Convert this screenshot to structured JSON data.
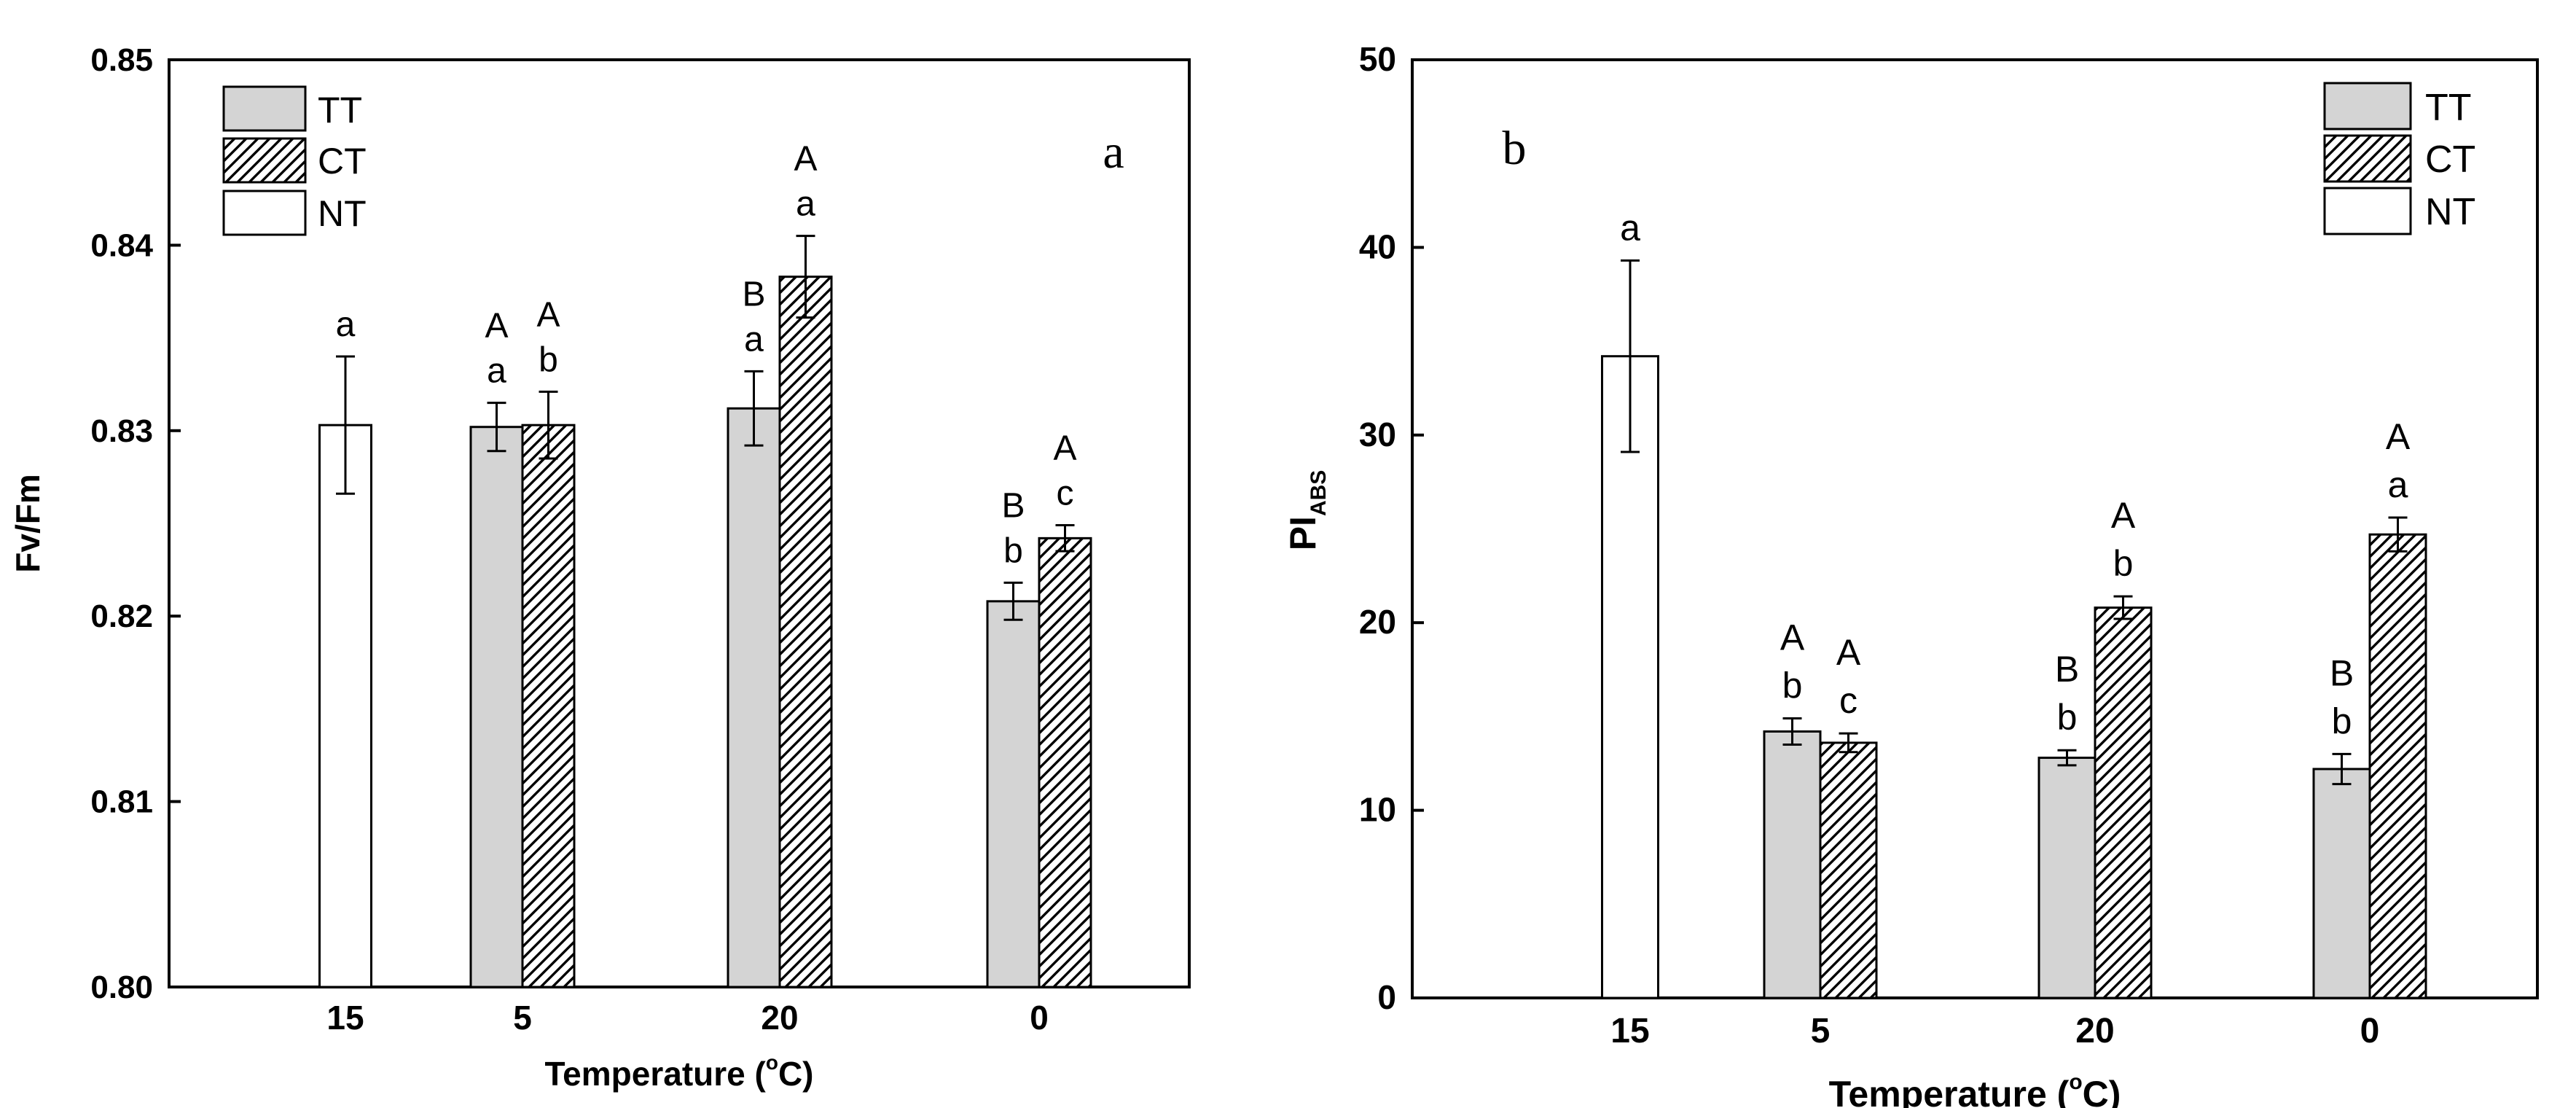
{
  "chart_data": [
    {
      "type": "bar",
      "panel_label": "a",
      "ylabel": "Fv/Fm",
      "xlabel_main": "Temperature (",
      "xlabel_deg": "o",
      "xlabel_unit": "C)",
      "ylim": [
        0.8,
        0.85
      ],
      "yticks": [
        0.8,
        0.81,
        0.82,
        0.83,
        0.84,
        0.85
      ],
      "ytick_labels": [
        "0.80",
        "0.81",
        "0.82",
        "0.83",
        "0.84",
        "0.85"
      ],
      "categories": [
        "15",
        "5",
        "20",
        "0"
      ],
      "legend": [
        {
          "label": "TT",
          "fill": "gray"
        },
        {
          "label": "CT",
          "fill": "hatch"
        },
        {
          "label": "NT",
          "fill": "white"
        }
      ],
      "bars": [
        {
          "category": 0,
          "series": "NT",
          "value": 0.8303,
          "err": 0.0037,
          "letters": [
            "a"
          ]
        },
        {
          "category": 1,
          "series": "TT",
          "value": 0.8302,
          "err": 0.0013,
          "letters": [
            "A",
            "a"
          ]
        },
        {
          "category": 1,
          "series": "CT",
          "value": 0.8303,
          "err": 0.0018,
          "letters": [
            "A",
            "b"
          ]
        },
        {
          "category": 2,
          "series": "TT",
          "value": 0.8312,
          "err": 0.002,
          "letters": [
            "B",
            "a"
          ]
        },
        {
          "category": 2,
          "series": "CT",
          "value": 0.8383,
          "err": 0.0022,
          "letters": [
            "A",
            "a"
          ]
        },
        {
          "category": 3,
          "series": "TT",
          "value": 0.8208,
          "err": 0.001,
          "letters": [
            "B",
            "b"
          ]
        },
        {
          "category": 3,
          "series": "CT",
          "value": 0.8242,
          "err": 0.0007,
          "letters": [
            "A",
            "c"
          ]
        }
      ]
    },
    {
      "type": "bar",
      "panel_label": "b",
      "ylabel_main": "PI",
      "ylabel_sub": "ABS",
      "xlabel_main": "Temperature (",
      "xlabel_deg": "o",
      "xlabel_unit": "C)",
      "ylim": [
        0,
        50
      ],
      "yticks": [
        0,
        10,
        20,
        30,
        40,
        50
      ],
      "ytick_labels": [
        "0",
        "10",
        "20",
        "30",
        "40",
        "50"
      ],
      "categories": [
        "15",
        "5",
        "20",
        "0"
      ],
      "legend": [
        {
          "label": "TT",
          "fill": "gray"
        },
        {
          "label": "CT",
          "fill": "hatch"
        },
        {
          "label": "NT",
          "fill": "white"
        }
      ],
      "bars": [
        {
          "category": 0,
          "series": "NT",
          "value": 34.2,
          "err": 5.1,
          "letters": [
            "a"
          ]
        },
        {
          "category": 1,
          "series": "TT",
          "value": 14.2,
          "err": 0.7,
          "letters": [
            "A",
            "b"
          ]
        },
        {
          "category": 1,
          "series": "CT",
          "value": 13.6,
          "err": 0.5,
          "letters": [
            "A",
            "c"
          ]
        },
        {
          "category": 2,
          "series": "TT",
          "value": 12.8,
          "err": 0.4,
          "letters": [
            "B",
            "b"
          ]
        },
        {
          "category": 2,
          "series": "CT",
          "value": 20.8,
          "err": 0.6,
          "letters": [
            "A",
            "b"
          ]
        },
        {
          "category": 3,
          "series": "TT",
          "value": 12.2,
          "err": 0.8,
          "letters": [
            "B",
            "b"
          ]
        },
        {
          "category": 3,
          "series": "CT",
          "value": 24.7,
          "err": 0.9,
          "letters": [
            "A",
            "a"
          ]
        }
      ]
    }
  ]
}
